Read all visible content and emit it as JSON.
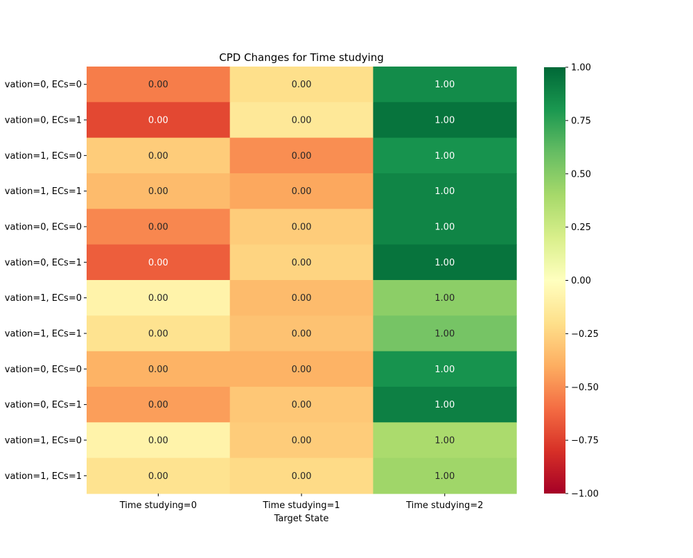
{
  "chart_data": {
    "type": "heatmap",
    "title": "CPD Changes for Time studying",
    "xlabel": "Target State",
    "ylabel": "",
    "columns": [
      "Time studying=0",
      "Time studying=1",
      "Time studying=2"
    ],
    "rows": [
      "vation=0, ECs=0",
      "vation=0, ECs=1",
      "vation=1, ECs=0",
      "vation=1, ECs=1",
      "vation=0, ECs=0",
      "vation=0, ECs=1",
      "vation=1, ECs=0",
      "vation=1, ECs=1",
      "vation=0, ECs=0",
      "vation=0, ECs=1",
      "vation=1, ECs=0",
      "vation=1, ECs=1"
    ],
    "cell_labels": [
      [
        "0.00",
        "0.00",
        "1.00"
      ],
      [
        "0.00",
        "0.00",
        "1.00"
      ],
      [
        "0.00",
        "0.00",
        "1.00"
      ],
      [
        "0.00",
        "0.00",
        "1.00"
      ],
      [
        "0.00",
        "0.00",
        "1.00"
      ],
      [
        "0.00",
        "0.00",
        "1.00"
      ],
      [
        "0.00",
        "0.00",
        "1.00"
      ],
      [
        "0.00",
        "0.00",
        "1.00"
      ],
      [
        "0.00",
        "0.00",
        "1.00"
      ],
      [
        "0.00",
        "0.00",
        "1.00"
      ],
      [
        "0.00",
        "0.00",
        "1.00"
      ],
      [
        "0.00",
        "0.00",
        "1.00"
      ]
    ],
    "color_values": [
      [
        -0.55,
        -0.2,
        0.85
      ],
      [
        -0.72,
        -0.15,
        0.95
      ],
      [
        -0.28,
        -0.5,
        0.82
      ],
      [
        -0.35,
        -0.42,
        0.88
      ],
      [
        -0.52,
        -0.28,
        0.88
      ],
      [
        -0.65,
        -0.25,
        0.95
      ],
      [
        -0.08,
        -0.35,
        0.48
      ],
      [
        -0.18,
        -0.32,
        0.55
      ],
      [
        -0.38,
        -0.38,
        0.82
      ],
      [
        -0.45,
        -0.3,
        0.9
      ],
      [
        -0.08,
        -0.28,
        0.38
      ],
      [
        -0.18,
        -0.22,
        0.42
      ]
    ],
    "vmin": -1.0,
    "vmax": 1.0,
    "colormap": "RdYlGn",
    "colorbar_ticks": [
      {
        "value": 1.0,
        "label": "1.00"
      },
      {
        "value": 0.75,
        "label": "0.75"
      },
      {
        "value": 0.5,
        "label": "0.50"
      },
      {
        "value": 0.25,
        "label": "0.25"
      },
      {
        "value": 0.0,
        "label": "0.00"
      },
      {
        "value": -0.25,
        "label": "−0.25"
      },
      {
        "value": -0.5,
        "label": "−0.50"
      },
      {
        "value": -0.75,
        "label": "−0.75"
      },
      {
        "value": -1.0,
        "label": "−1.00"
      }
    ]
  }
}
